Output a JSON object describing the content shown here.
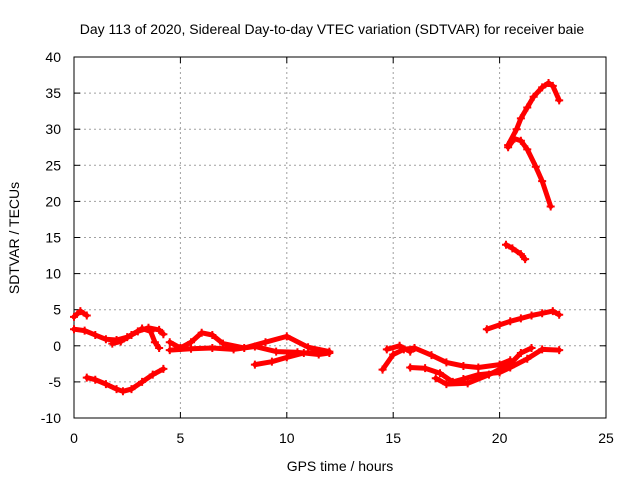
{
  "chart_data": {
    "type": "scatter",
    "title": "Day 113 of 2020, Sidereal Day-to-day VTEC variation (SDTVAR) for receiver baie",
    "xlabel": "GPS time / hours",
    "ylabel": "SDTVAR / TECUs",
    "xlim": [
      0,
      25
    ],
    "ylim": [
      -10,
      40
    ],
    "xticks": [
      0,
      5,
      10,
      15,
      20,
      25
    ],
    "yticks": [
      -10,
      -5,
      0,
      5,
      10,
      15,
      20,
      25,
      30,
      35,
      40
    ],
    "grid": true,
    "marker": "plus",
    "color": "#ff0000",
    "series": [
      {
        "points": [
          [
            0.0,
            4.0
          ],
          [
            0.3,
            4.8
          ],
          [
            0.6,
            4.2
          ]
        ]
      },
      {
        "points": [
          [
            0.0,
            2.3
          ],
          [
            0.5,
            2.1
          ],
          [
            1.0,
            1.5
          ],
          [
            1.5,
            0.9
          ],
          [
            2.0,
            0.8
          ],
          [
            2.5,
            1.2
          ],
          [
            3.0,
            2.0
          ],
          [
            3.5,
            2.5
          ],
          [
            4.0,
            2.2
          ],
          [
            4.2,
            1.6
          ]
        ]
      },
      {
        "points": [
          [
            1.8,
            0.3
          ],
          [
            2.2,
            0.6
          ],
          [
            2.7,
            1.5
          ],
          [
            3.2,
            2.4
          ],
          [
            3.6,
            2.0
          ],
          [
            3.8,
            0.5
          ],
          [
            4.0,
            -0.3
          ]
        ]
      },
      {
        "points": [
          [
            0.6,
            -4.4
          ],
          [
            1.0,
            -4.7
          ],
          [
            1.5,
            -5.3
          ],
          [
            2.0,
            -6.0
          ],
          [
            2.3,
            -6.3
          ],
          [
            2.7,
            -6.0
          ],
          [
            3.2,
            -5.0
          ],
          [
            3.7,
            -4.0
          ],
          [
            4.2,
            -3.2
          ]
        ]
      },
      {
        "points": [
          [
            4.5,
            0.5
          ],
          [
            5.0,
            -0.3
          ],
          [
            5.5,
            0.5
          ],
          [
            6.0,
            1.8
          ],
          [
            6.5,
            1.5
          ],
          [
            7.0,
            0.3
          ],
          [
            8.0,
            -0.3
          ],
          [
            9.0,
            0.5
          ],
          [
            10.0,
            1.3
          ],
          [
            11.0,
            -0.2
          ],
          [
            12.0,
            -0.8
          ]
        ]
      },
      {
        "points": [
          [
            4.5,
            -0.6
          ],
          [
            5.5,
            -0.4
          ],
          [
            6.5,
            -0.3
          ],
          [
            7.5,
            -0.5
          ],
          [
            8.5,
            -0.1
          ],
          [
            9.5,
            -0.8
          ],
          [
            10.5,
            -0.9
          ],
          [
            11.5,
            -1.2
          ],
          [
            12.0,
            -1.0
          ]
        ]
      },
      {
        "points": [
          [
            8.5,
            -2.6
          ],
          [
            9.3,
            -2.2
          ],
          [
            10.0,
            -1.6
          ],
          [
            10.8,
            -1.0
          ],
          [
            11.5,
            -0.9
          ]
        ]
      },
      {
        "points": [
          [
            14.5,
            -3.3
          ],
          [
            15.0,
            -1.2
          ],
          [
            15.5,
            -0.5
          ],
          [
            16.0,
            -0.3
          ],
          [
            16.8,
            -1.3
          ],
          [
            17.5,
            -2.3
          ],
          [
            18.3,
            -2.8
          ],
          [
            19.0,
            -3.0
          ],
          [
            20.0,
            -2.6
          ],
          [
            20.5,
            -2.0
          ]
        ]
      },
      {
        "points": [
          [
            14.7,
            -0.5
          ],
          [
            15.3,
            0.0
          ],
          [
            15.8,
            -0.8
          ]
        ]
      },
      {
        "points": [
          [
            15.8,
            -3.0
          ],
          [
            16.5,
            -3.1
          ],
          [
            17.2,
            -3.8
          ],
          [
            17.8,
            -5.0
          ],
          [
            18.3,
            -4.6
          ],
          [
            19.0,
            -4.0
          ],
          [
            20.0,
            -3.7
          ],
          [
            20.5,
            -3.0
          ],
          [
            21.3,
            -1.8
          ],
          [
            22.0,
            -0.5
          ],
          [
            22.8,
            -0.6
          ]
        ]
      },
      {
        "points": [
          [
            17.0,
            -4.5
          ],
          [
            17.5,
            -5.3
          ],
          [
            18.5,
            -5.2
          ],
          [
            19.5,
            -4.0
          ],
          [
            20.5,
            -2.5
          ],
          [
            21.0,
            -1.0
          ],
          [
            21.5,
            -0.3
          ]
        ]
      },
      {
        "points": [
          [
            19.4,
            2.3
          ],
          [
            20.0,
            2.9
          ],
          [
            20.5,
            3.4
          ],
          [
            21.0,
            3.8
          ],
          [
            21.5,
            4.2
          ],
          [
            22.0,
            4.5
          ],
          [
            22.5,
            4.8
          ],
          [
            22.8,
            4.3
          ]
        ]
      },
      {
        "points": [
          [
            20.3,
            14.0
          ],
          [
            20.6,
            13.5
          ],
          [
            21.0,
            12.7
          ],
          [
            21.2,
            12.0
          ]
        ]
      },
      {
        "points": [
          [
            20.4,
            27.5
          ],
          [
            20.7,
            28.7
          ],
          [
            21.0,
            28.4
          ],
          [
            21.3,
            27.2
          ],
          [
            21.7,
            24.8
          ],
          [
            22.0,
            22.8
          ],
          [
            22.4,
            19.3
          ]
        ]
      },
      {
        "points": [
          [
            20.4,
            27.8
          ],
          [
            20.8,
            30.0
          ],
          [
            21.0,
            31.5
          ],
          [
            21.3,
            33.0
          ],
          [
            21.6,
            34.5
          ],
          [
            22.0,
            35.8
          ],
          [
            22.3,
            36.4
          ],
          [
            22.5,
            36.0
          ],
          [
            22.8,
            34.0
          ]
        ]
      }
    ]
  }
}
